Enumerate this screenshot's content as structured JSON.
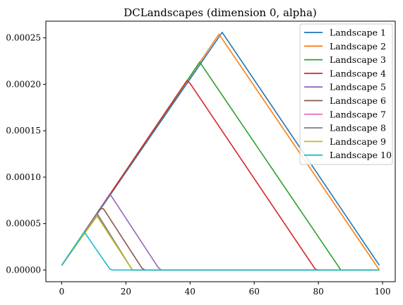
{
  "chart_data": {
    "type": "line",
    "title": "DCLandscapes (dimension 0, alpha)",
    "xlabel": "",
    "ylabel": "",
    "xlim": [
      -4.95,
      103.95
    ],
    "ylim": [
      -1.26e-05,
      0.000268
    ],
    "xticks": [
      0,
      20,
      40,
      60,
      80,
      100
    ],
    "yticks": [
      0.0,
      5e-05,
      0.0001,
      0.00015,
      0.0002,
      0.00025
    ],
    "xtick_labels": [
      "0",
      "20",
      "40",
      "60",
      "80",
      "100"
    ],
    "ytick_labels": [
      "0.00000",
      "0.00005",
      "0.00010",
      "0.00015",
      "0.00020",
      "0.00025"
    ],
    "grid": false,
    "legend_position": "top-right",
    "series": [
      {
        "name": "Landscape 1",
        "color": "#1f77b4",
        "x": [
          0,
          50,
          99
        ],
        "y": [
          5e-06,
          0.000256,
          5e-06
        ]
      },
      {
        "name": "Landscape 2",
        "color": "#ff7f0e",
        "x": [
          0,
          49,
          99
        ],
        "y": [
          5e-06,
          0.000254,
          0.0
        ]
      },
      {
        "name": "Landscape 3",
        "color": "#2ca02c",
        "x": [
          0,
          43,
          87,
          99
        ],
        "y": [
          5e-06,
          0.000224,
          0.0,
          0.0
        ]
      },
      {
        "name": "Landscape 4",
        "color": "#d62728",
        "x": [
          0,
          39,
          40,
          79,
          80,
          99
        ],
        "y": [
          5e-06,
          0.000204,
          0.000201,
          1e-06,
          0.0,
          0.0
        ]
      },
      {
        "name": "Landscape 5",
        "color": "#9467bd",
        "x": [
          0,
          15,
          30,
          31,
          99
        ],
        "y": [
          5e-06,
          8.2e-05,
          3e-06,
          0.0,
          0.0
        ]
      },
      {
        "name": "Landscape 6",
        "color": "#8c564b",
        "x": [
          0,
          12,
          13,
          25,
          26,
          99
        ],
        "y": [
          5e-06,
          6.6e-05,
          6.6e-05,
          2e-06,
          0.0,
          0.0
        ]
      },
      {
        "name": "Landscape 7",
        "color": "#e377c2",
        "x": [
          0,
          11,
          22,
          99
        ],
        "y": [
          5e-06,
          6e-05,
          0.0,
          0.0
        ]
      },
      {
        "name": "Landscape 8",
        "color": "#7f7f7f",
        "x": [
          0,
          11,
          22,
          99
        ],
        "y": [
          5e-06,
          6.1e-05,
          0.0,
          0.0
        ]
      },
      {
        "name": "Landscape 9",
        "color": "#bcbd22",
        "x": [
          0,
          11,
          22,
          99
        ],
        "y": [
          5e-06,
          5.8e-05,
          0.0,
          0.0
        ]
      },
      {
        "name": "Landscape 10",
        "color": "#17becf",
        "x": [
          0,
          7,
          14,
          15,
          16,
          99
        ],
        "y": [
          5e-06,
          4.1e-05,
          6e-06,
          1e-06,
          0.0,
          0.0
        ]
      }
    ]
  }
}
